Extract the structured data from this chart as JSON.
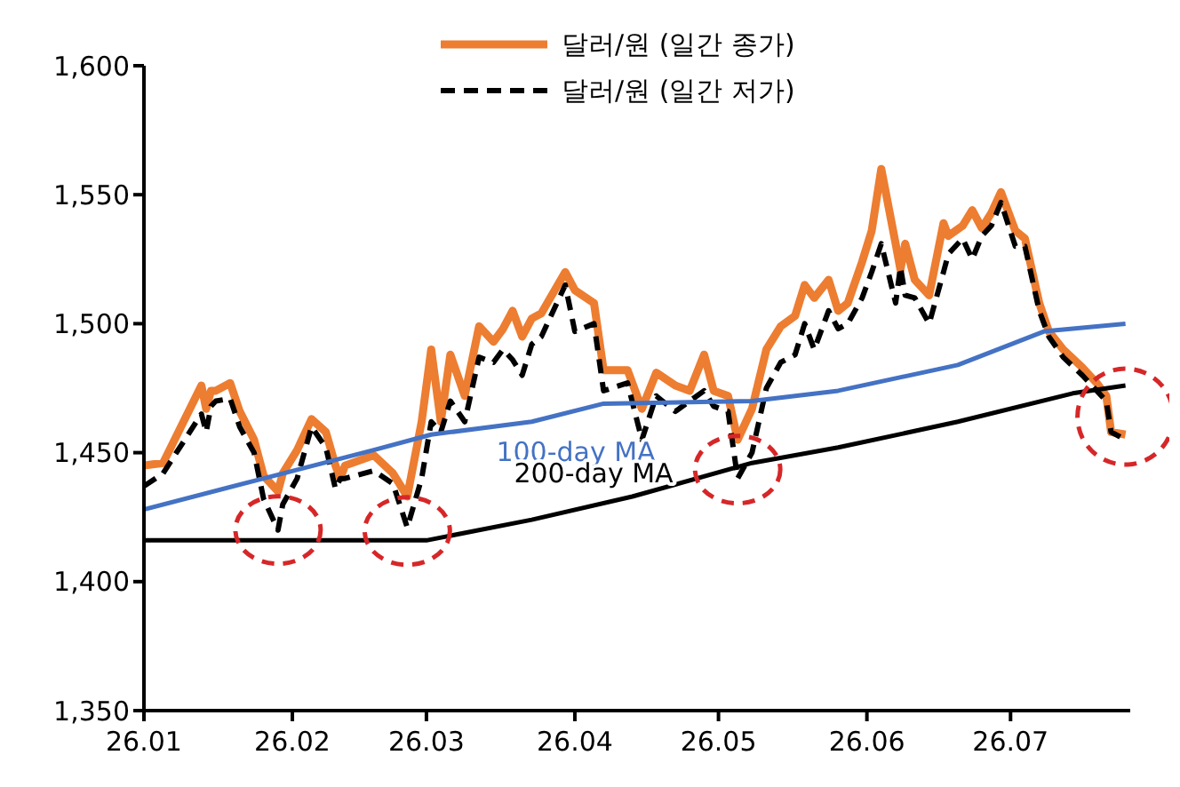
{
  "chart_data": {
    "type": "line",
    "legend": "top",
    "marker": "none",
    "xlim": [
      "--01-01",
      "--07-26"
    ],
    "xticks": [
      {
        "value": "--01-01",
        "label": "26.01"
      },
      {
        "value": "--02-01",
        "label": "26.02"
      },
      {
        "value": "--03-01",
        "label": "26.03"
      },
      {
        "value": "--04-01",
        "label": "26.04"
      },
      {
        "value": "--05-01",
        "label": "26.05"
      },
      {
        "value": "--06-01",
        "label": "26.06"
      },
      {
        "value": "--07-01",
        "label": "26.07"
      }
    ],
    "ylim": [
      1350,
      1600
    ],
    "yticks": [
      {
        "value": 1350,
        "label": "1,350"
      },
      {
        "value": 1400,
        "label": "1,400"
      },
      {
        "value": 1450,
        "label": "1,450"
      },
      {
        "value": 1500,
        "label": "1,500"
      },
      {
        "value": 1550,
        "label": "1,550"
      },
      {
        "value": 1600,
        "label": "1,600"
      }
    ],
    "x": [
      "--01-01",
      "--01-05",
      "--01-13",
      "--01-14",
      "--01-15",
      "--01-16",
      "--01-19",
      "--01-21",
      "--01-24",
      "--01-26",
      "--01-29",
      "--01-30",
      "--02-02",
      "--02-05",
      "--02-08",
      "--02-10",
      "--02-11",
      "--02-12",
      "--02-18",
      "--02-22",
      "--02-25",
      "--02-28",
      "--03-02",
      "--03-04",
      "--03-06",
      "--03-09",
      "--03-12",
      "--03-15",
      "--03-17",
      "--03-19",
      "--03-21",
      "--03-23",
      "--03-25",
      "--03-30",
      "--04-01",
      "--04-05",
      "--04-07",
      "--04-12",
      "--04-15",
      "--04-18",
      "--04-22",
      "--04-25",
      "--04-28",
      "--04-30",
      "--05-03",
      "--05-05",
      "--05-08",
      "--05-11",
      "--05-14",
      "--05-17",
      "--05-19",
      "--05-21",
      "--05-24",
      "--05-26",
      "--05-28",
      "--05-31",
      "--06-02",
      "--06-04",
      "--06-07",
      "--06-08",
      "--06-09",
      "--06-11",
      "--06-14",
      "--06-17",
      "--06-18",
      "--06-21",
      "--06-23",
      "--06-25",
      "--06-27",
      "--06-29",
      "--07-02",
      "--07-04",
      "--07-07",
      "--07-09",
      "--07-12",
      "--07-16",
      "--07-19",
      "--07-21",
      "--07-22",
      "--07-25"
    ],
    "series": [
      {
        "name": "달러/원 (일간 종가)",
        "color": "#ed7d31",
        "line_style": "solid",
        "values": [
          1445,
          1446,
          1476,
          1467,
          1474,
          1474,
          1477,
          1466,
          1455,
          1441,
          1435,
          1442,
          1451,
          1463,
          1458,
          1445,
          1440,
          1445,
          1449,
          1442,
          1433,
          1462,
          1490,
          1462,
          1488,
          1472,
          1499,
          1493,
          1498,
          1505,
          1495,
          1502,
          1504,
          1520,
          1513,
          1508,
          1482,
          1482,
          1467,
          1481,
          1476,
          1474,
          1488,
          1474,
          1472,
          1455,
          1467,
          1490,
          1499,
          1503,
          1515,
          1510,
          1517,
          1505,
          1508,
          1524,
          1536,
          1560,
          1531,
          1521,
          1531,
          1517,
          1511,
          1539,
          1534,
          1538,
          1544,
          1537,
          1543,
          1551,
          1536,
          1533,
          1508,
          1497,
          1490,
          1483,
          1477,
          1472,
          1458,
          1457
        ]
      },
      {
        "name": "달러/원 (일간 저가)",
        "color": "#000000",
        "line_style": "dashed",
        "values": [
          1437,
          1442,
          1465,
          1458,
          1468,
          1470,
          1471,
          1460,
          1450,
          1432,
          1420,
          1430,
          1440,
          1460,
          1452,
          1436,
          1440,
          1440,
          1443,
          1438,
          1421,
          1440,
          1462,
          1458,
          1470,
          1462,
          1487,
          1485,
          1490,
          1486,
          1480,
          1492,
          1495,
          1515,
          1497,
          1500,
          1474,
          1477,
          1455,
          1472,
          1466,
          1470,
          1474,
          1468,
          1466,
          1440,
          1450,
          1475,
          1485,
          1488,
          1500,
          1490,
          1505,
          1498,
          1500,
          1510,
          1520,
          1531,
          1508,
          1522,
          1511,
          1510,
          1500,
          1520,
          1527,
          1533,
          1525,
          1534,
          1538,
          1547,
          1530,
          1530,
          1505,
          1495,
          1487,
          1480,
          1474,
          1470,
          1458,
          1455
        ]
      },
      {
        "name": "100-day MA",
        "color": "#4472c4",
        "line_style": "solid",
        "x": [
          "--01-01",
          "--01-26",
          "--02-18",
          "--03-02",
          "--03-23",
          "--04-07",
          "--05-08",
          "--05-26",
          "--06-20",
          "--07-08",
          "--07-25"
        ],
        "values": [
          1428,
          1440,
          1451,
          1457,
          1462,
          1469,
          1470,
          1474,
          1484,
          1497,
          1500
        ]
      },
      {
        "name": "200-day MA",
        "color": "#000000",
        "line_style": "solid",
        "x": [
          "--01-01",
          "--03-01",
          "--03-23",
          "--04-13",
          "--05-08",
          "--05-26",
          "--06-20",
          "--07-14",
          "--07-25"
        ],
        "values": [
          1416,
          1416,
          1424,
          1433,
          1446,
          1452,
          1462,
          1473,
          1476
        ]
      }
    ]
  }
}
